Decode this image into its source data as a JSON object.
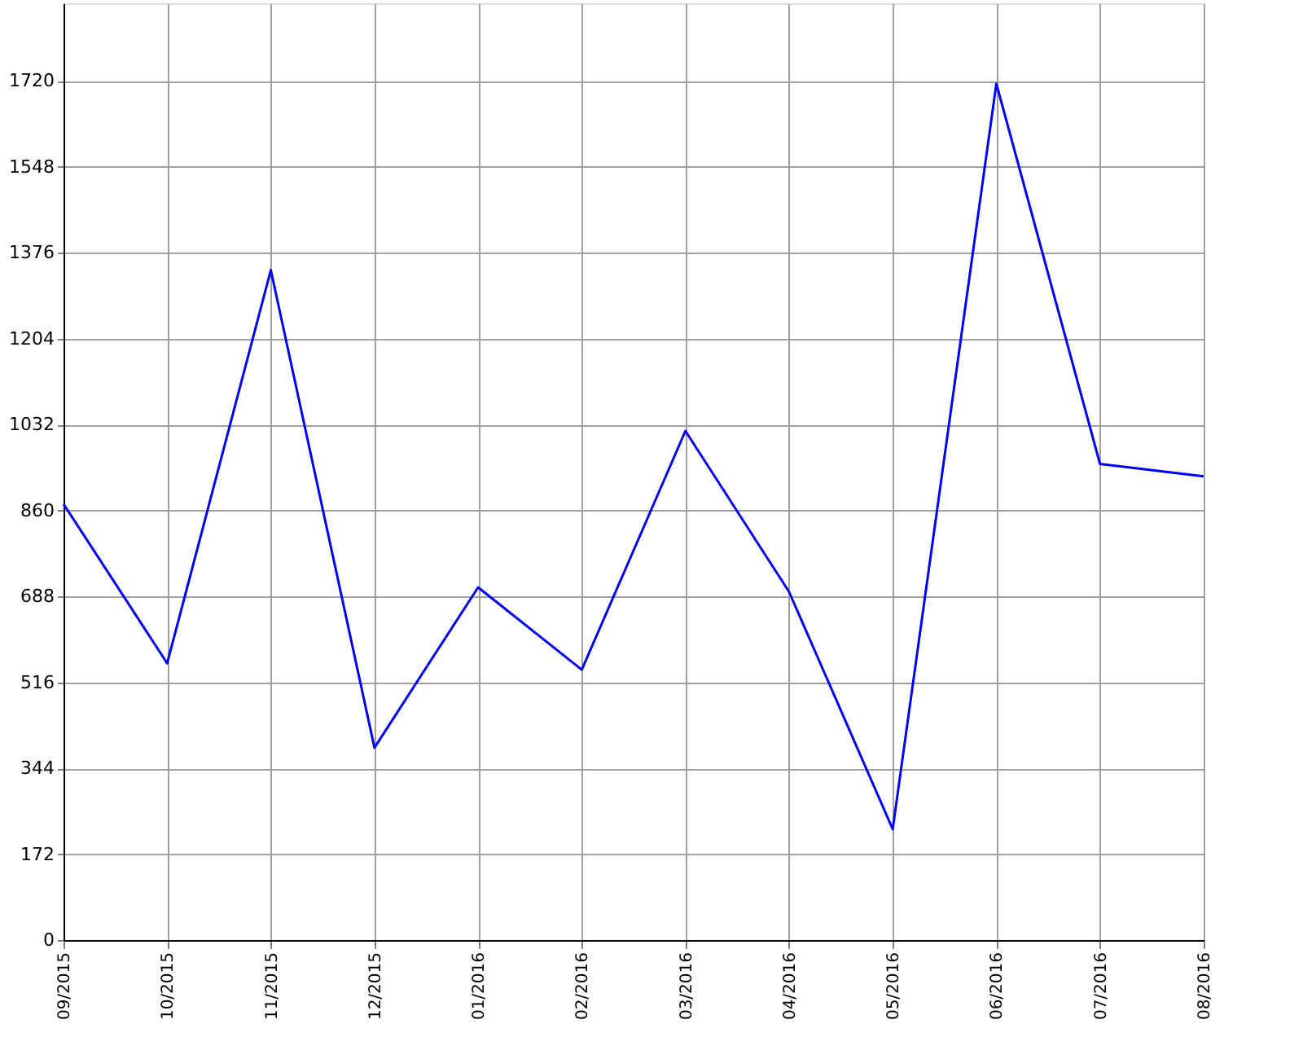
{
  "chart_data": {
    "type": "line",
    "categories": [
      "09/2015",
      "10/2015",
      "11/2015",
      "12/2015",
      "01/2016",
      "02/2016",
      "03/2016",
      "04/2016",
      "05/2016",
      "06/2016",
      "07/2016",
      "08/2016"
    ],
    "series": [
      {
        "color": "#0000ff",
        "values": [
          873,
          554,
          1341,
          385,
          706,
          541,
          1019,
          697,
          222,
          1714,
          953,
          928
        ]
      }
    ],
    "ylim": [
      0,
      1875
    ],
    "yticks": [
      0,
      172,
      344,
      516,
      688,
      860,
      1032,
      1204,
      1376,
      1548,
      1720
    ],
    "grid": true,
    "marker": "none",
    "line_style": "solid"
  }
}
